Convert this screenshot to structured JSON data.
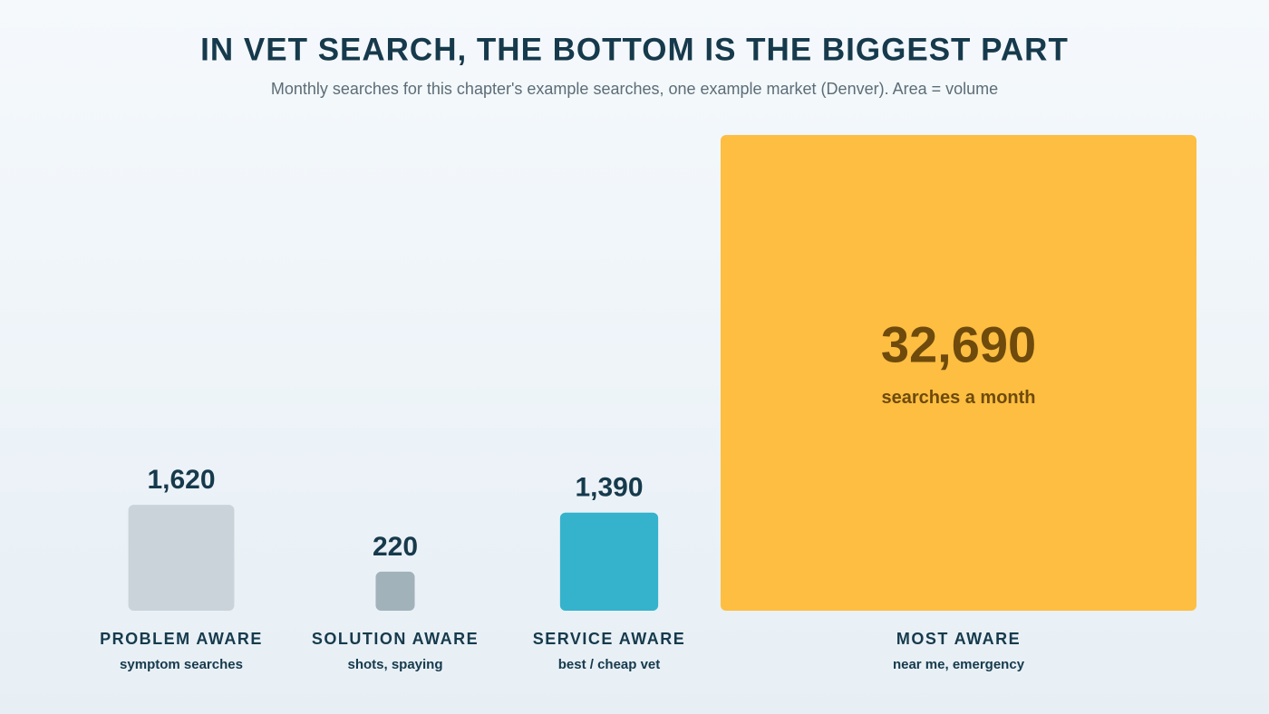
{
  "chart_data": {
    "type": "area-square",
    "title": "IN VET SEARCH, THE BOTTOM IS THE BIGGEST PART",
    "subtitle": "Monthly searches for this chapter's example searches, one example market (Denver). Area = volume",
    "categories": [
      "PROBLEM AWARE",
      "SOLUTION AWARE",
      "SERVICE AWARE",
      "MOST AWARE"
    ],
    "category_notes": [
      "symptom searches",
      "shots, spaying",
      "best / cheap vet",
      "near me, emergency"
    ],
    "values": [
      1620,
      220,
      1390,
      32690
    ],
    "value_labels": [
      "1,620",
      "220",
      "1,390",
      "32,690"
    ],
    "value_unit": "searches a month",
    "colors": [
      "#cbd3da",
      "#a1b2ba",
      "#35b3cc",
      "#fdbe41"
    ]
  }
}
